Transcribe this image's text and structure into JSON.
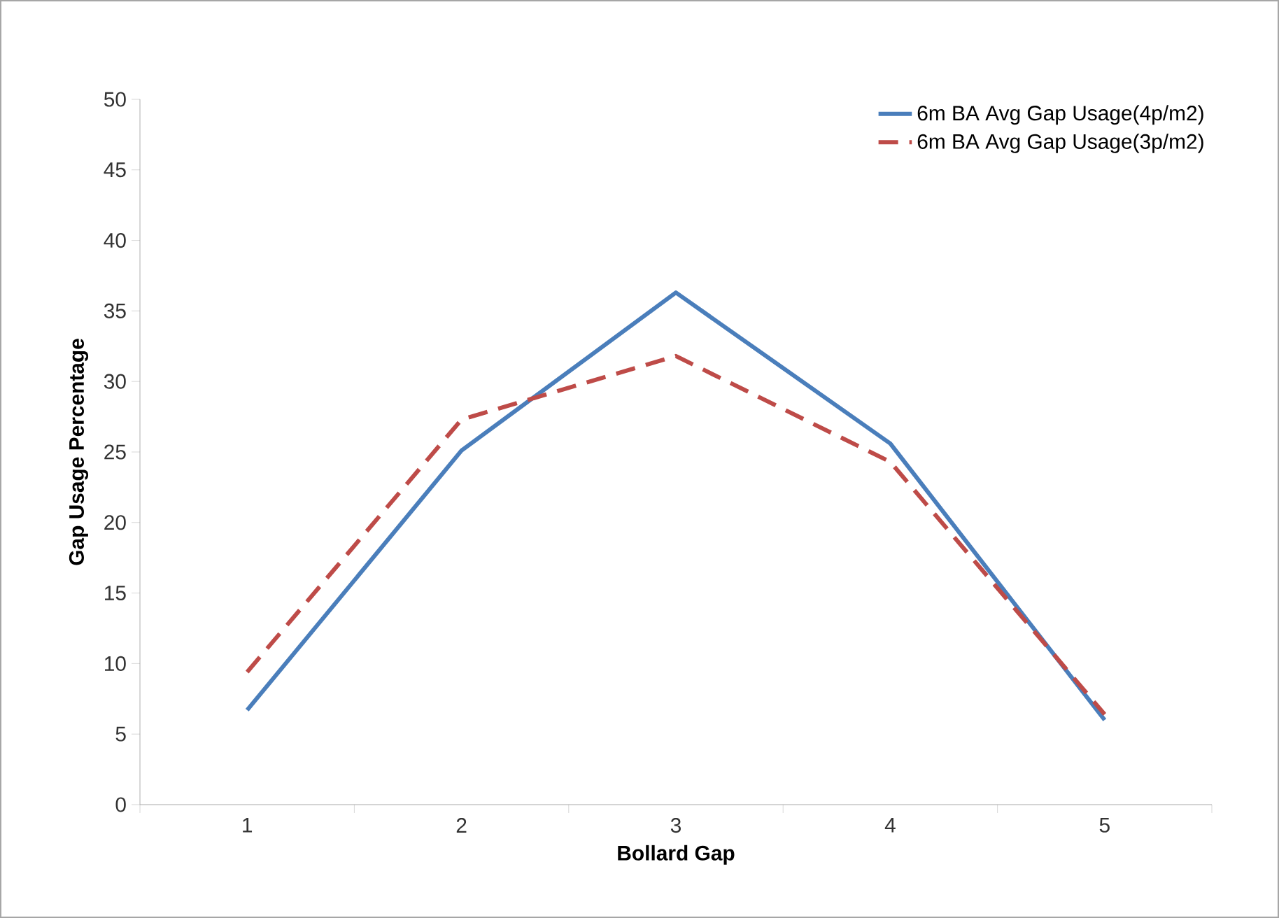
{
  "chart_data": {
    "type": "line",
    "xlabel": "Bollard Gap",
    "ylabel": "Gap Usage Percentage",
    "categories": [
      "1",
      "2",
      "3",
      "4",
      "5"
    ],
    "series": [
      {
        "name": "6m BA Avg Gap Usage(4p/m2)",
        "color": "#4a7ebb",
        "line_style": "solid",
        "values": [
          6.7,
          25.1,
          36.3,
          25.6,
          6.0
        ]
      },
      {
        "name": "6m BA Avg Gap Usage(3p/m2)",
        "color": "#be4b48",
        "line_style": "dashed",
        "values": [
          9.4,
          27.3,
          31.8,
          24.3,
          6.4
        ]
      }
    ],
    "ylim": [
      0,
      50
    ],
    "yticks": [
      0,
      5,
      10,
      15,
      20,
      25,
      30,
      35,
      40,
      45,
      50
    ],
    "grid": false,
    "legend": "top right",
    "marker": "none"
  }
}
